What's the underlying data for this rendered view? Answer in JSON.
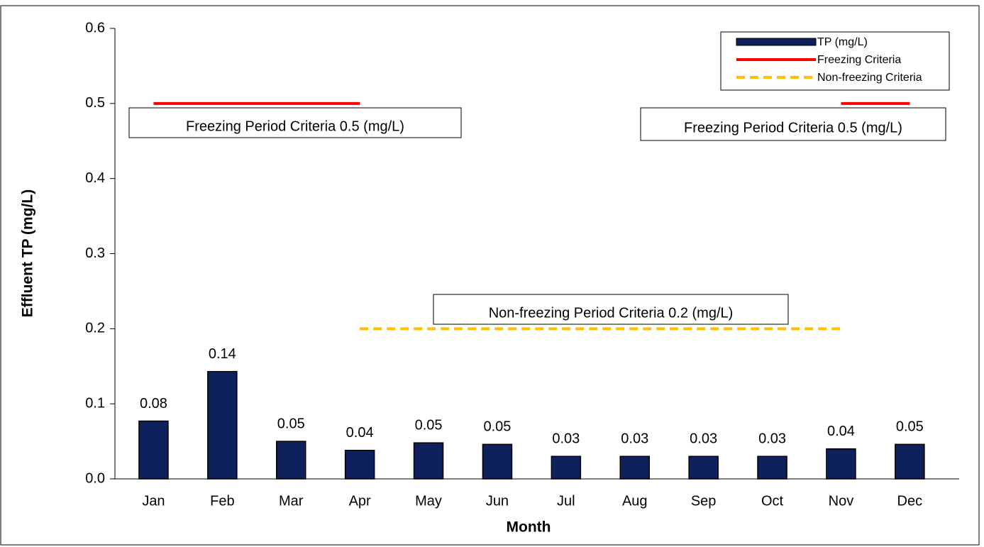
{
  "chart_data": {
    "type": "bar",
    "x_label": "Month",
    "y_label": "Effluent TP (mg/L)",
    "categories": [
      "Jan",
      "Feb",
      "Mar",
      "Apr",
      "May",
      "Jun",
      "Jul",
      "Aug",
      "Sep",
      "Oct",
      "Nov",
      "Dec"
    ],
    "series": [
      {
        "name": "TP (mg/L)",
        "type": "bar",
        "color": "#0f215c",
        "values": [
          0.077,
          0.143,
          0.05,
          0.038,
          0.048,
          0.046,
          0.03,
          0.03,
          0.03,
          0.03,
          0.04,
          0.046
        ],
        "value_labels": [
          "0.08",
          "0.14",
          "0.05",
          "0.04",
          "0.05",
          "0.05",
          "0.03",
          "0.03",
          "0.03",
          "0.03",
          "0.04",
          "0.05"
        ]
      },
      {
        "name": "Freezing Criteria",
        "type": "line",
        "color": "#ff0000",
        "dash": false,
        "values": [
          0.5,
          0.5,
          0.5,
          0.5,
          null,
          null,
          null,
          null,
          null,
          null,
          0.5,
          0.5
        ]
      },
      {
        "name": "Non-freezing Criteria",
        "type": "line",
        "color": "#ffc000",
        "dash": true,
        "values": [
          null,
          null,
          null,
          0.2,
          0.2,
          0.2,
          0.2,
          0.2,
          0.2,
          0.2,
          0.2,
          null
        ]
      }
    ],
    "annotations": [
      "Freezing Period Criteria 0.5 (mg/L)",
      "Freezing Period Criteria 0.5 (mg/L)",
      "Non-freezing Period Criteria 0.2 (mg/L)"
    ],
    "ylim": [
      0,
      0.6
    ],
    "yticks": [
      {
        "value": 0,
        "label": "0.0"
      },
      {
        "value": 0.1,
        "label": "0.1"
      },
      {
        "value": 0.2,
        "label": "0.2"
      },
      {
        "value": 0.3,
        "label": "0.3"
      },
      {
        "value": 0.4,
        "label": "0.4"
      },
      {
        "value": 0.5,
        "label": "0.5"
      },
      {
        "value": 0.6,
        "label": "0.6"
      }
    ],
    "legend": "top-right",
    "grid": false
  }
}
